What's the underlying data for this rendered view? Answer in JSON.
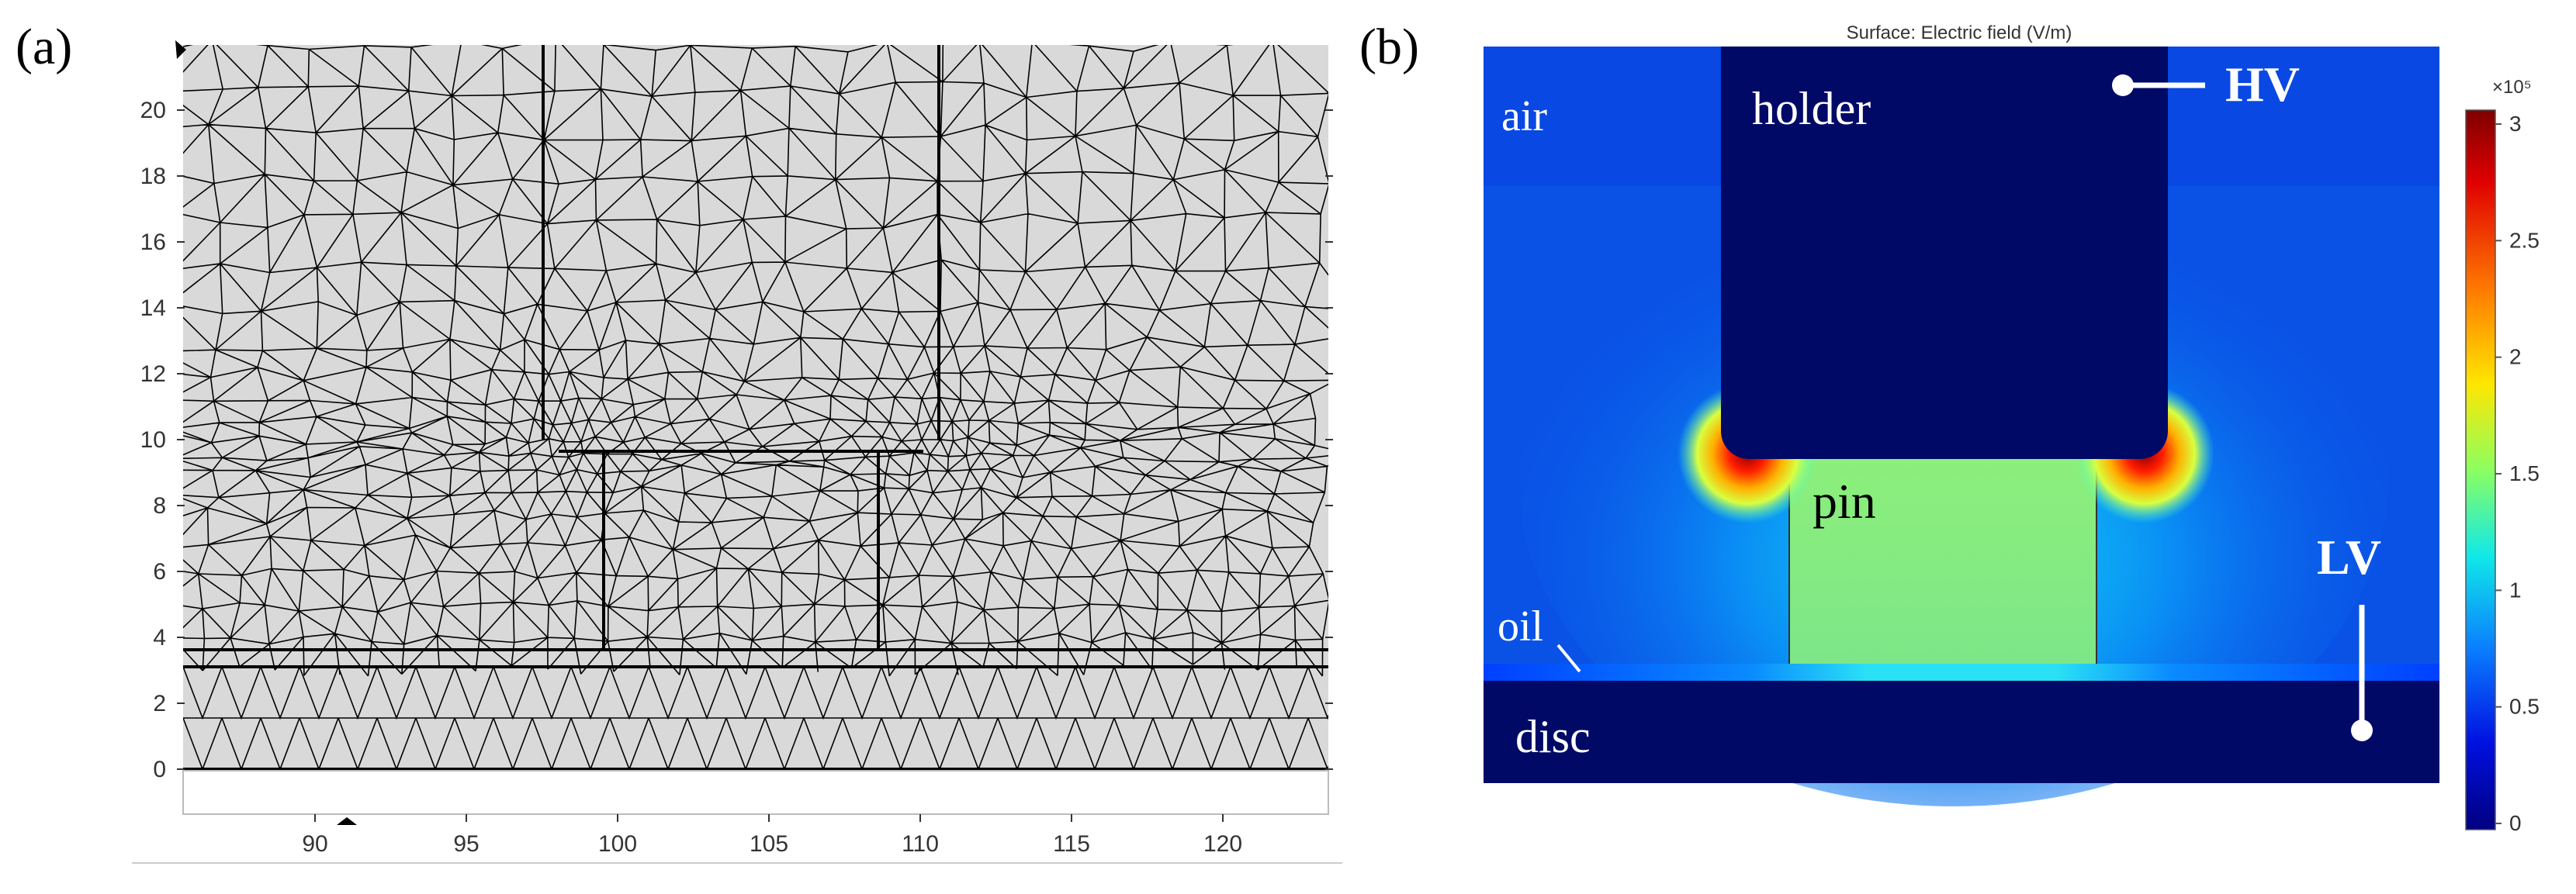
{
  "panel_a": {
    "label": "(a)",
    "y_ticks": [
      "0",
      "2",
      "4",
      "6",
      "8",
      "10",
      "12",
      "14",
      "16",
      "18",
      "20"
    ],
    "x_ticks": [
      "90",
      "95",
      "100",
      "105",
      "110",
      "115",
      "120"
    ],
    "mesh_fill": "#d9d9d9",
    "mesh_line": "#000000"
  },
  "panel_b": {
    "label": "(b)",
    "plot_title": "Surface: Electric field (V/m)",
    "regions": {
      "air": "air",
      "holder": "holder",
      "pin": "pin",
      "oil": "oil",
      "disc": "disc"
    },
    "terminals": {
      "high_voltage": "HV",
      "low_voltage": "LV"
    },
    "colorbar": {
      "multiplier": "×10⁵",
      "ticks": [
        "3",
        "2.5",
        "2",
        "1.5",
        "1",
        "0.5",
        "0"
      ],
      "colors": [
        "#7f0000",
        "#ff0000",
        "#ff8000",
        "#ffff00",
        "#80ff80",
        "#00ffff",
        "#0080ff",
        "#0000ff",
        "#000080"
      ]
    }
  }
}
